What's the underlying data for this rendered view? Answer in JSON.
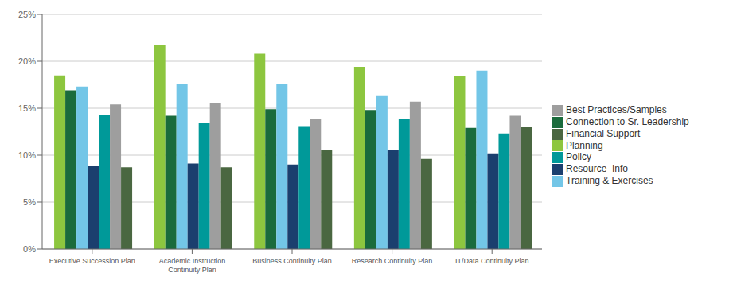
{
  "chart_data": {
    "type": "bar",
    "categories": [
      "Executive Succession Plan",
      "Academic Instruction\nContinuity Plan",
      "Business Continuity Plan",
      "Research Continuity Plan",
      "IT/Data Continuity Plan"
    ],
    "series": [
      {
        "name": "Planning",
        "color": "#8DC63F",
        "values": [
          18.5,
          21.7,
          20.8,
          19.4,
          18.4
        ]
      },
      {
        "name": "Connection to Sr. Leadership",
        "color": "#1A6B3C",
        "values": [
          16.9,
          14.2,
          14.9,
          14.8,
          12.9
        ]
      },
      {
        "name": "Training & Exercises",
        "color": "#73C6E7",
        "values": [
          17.3,
          17.6,
          17.6,
          16.3,
          19.0
        ]
      },
      {
        "name": "Resource  Info",
        "color": "#1B3F6E",
        "values": [
          8.9,
          9.1,
          9.0,
          10.6,
          10.2
        ]
      },
      {
        "name": "Policy",
        "color": "#009999",
        "values": [
          14.3,
          13.4,
          13.1,
          13.9,
          12.3
        ]
      },
      {
        "name": "Best Practices/Samples",
        "color": "#9E9E9E",
        "values": [
          15.4,
          15.5,
          13.9,
          15.7,
          14.2
        ]
      },
      {
        "name": "Financial Support",
        "color": "#4A6741",
        "values": [
          8.7,
          8.7,
          10.6,
          9.6,
          13.0
        ]
      }
    ],
    "ylim": [
      0,
      25
    ],
    "yticks": [
      {
        "value": 0,
        "label": "0%"
      },
      {
        "value": 5,
        "label": "5%"
      },
      {
        "value": 10,
        "label": "10%"
      },
      {
        "value": 15,
        "label": "15%"
      },
      {
        "value": 20,
        "label": "20%"
      },
      {
        "value": 25,
        "label": "25%"
      }
    ],
    "grid": true,
    "legend": "right"
  }
}
